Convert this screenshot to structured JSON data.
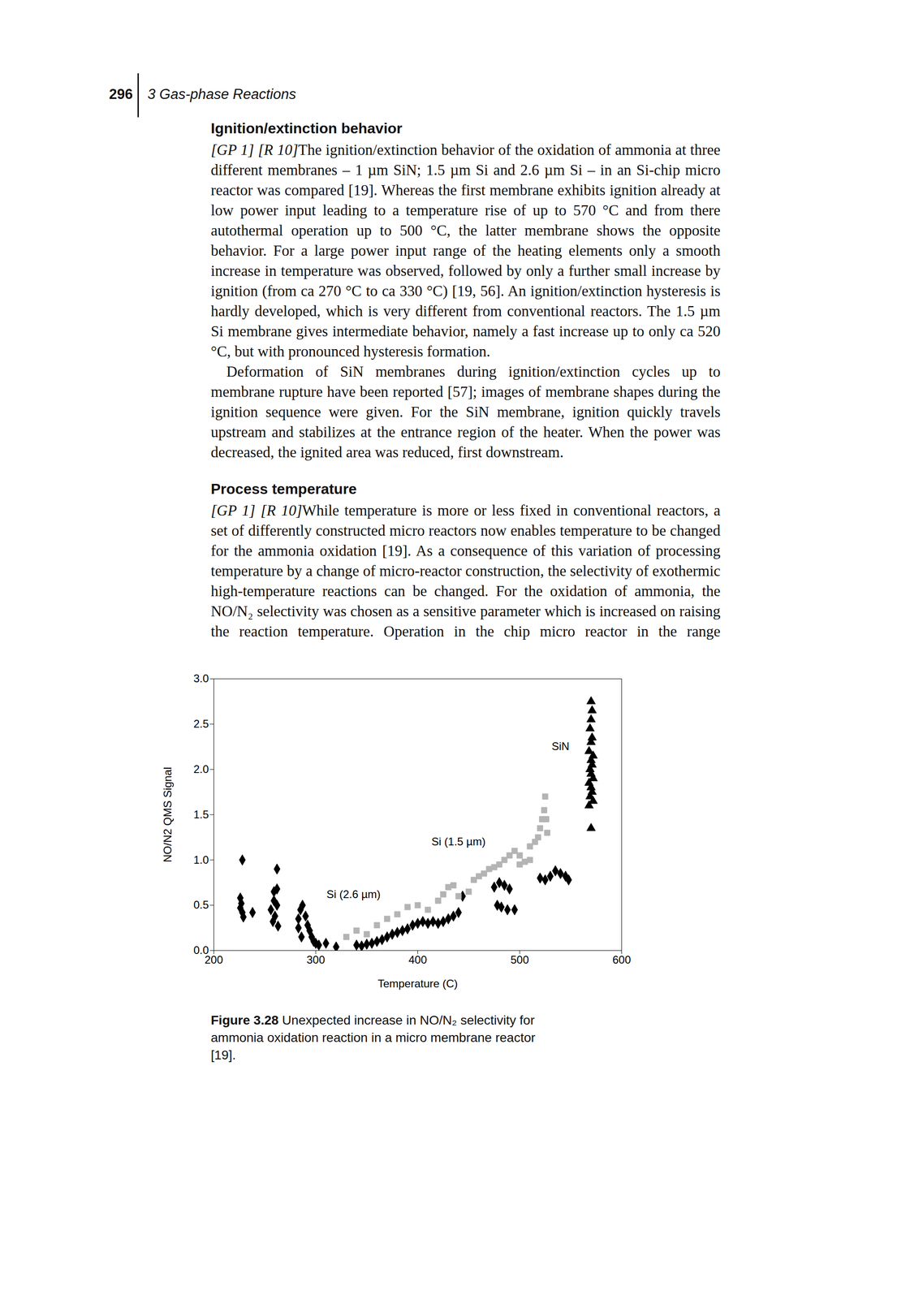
{
  "document": {
    "page_number": "296",
    "running_head": "3 Gas-phase Reactions",
    "sections": [
      {
        "heading": "Ignition/extinction behavior",
        "paragraphs": [
          {
            "tag": "[GP 1] [R 10]",
            "text": "The ignition/extinction behavior of the oxidation of ammonia at three different membranes – 1 µm SiN; 1.5 µm Si and 2.6 µm Si – in an Si-chip micro reactor was compared [19]. Whereas the first membrane exhibits ignition already at low power input leading to a temperature rise of up to 570 °C and from there autothermal operation up to 500 °C, the latter membrane shows the opposite behavior. For a large power input range of the heating elements only a smooth increase in temperature was observed, followed by only a further small increase by ignition (from ca 270 °C to ca 330 °C) [19, 56]. An ignition/extinction hysteresis is hardly developed, which is very different from conventional reactors. The 1.5 µm Si membrane gives intermediate behavior, namely a fast increase up to only ca 520 °C, but with pronounced hysteresis formation."
          },
          {
            "text": "Deformation of SiN membranes during ignition/extinction cycles up to membrane rupture have been reported [57]; images of membrane shapes during the ignition sequence were given. For the SiN membrane, ignition quickly travels upstream and stabilizes at the entrance region of the heater. When the power was decreased, the ignited area was reduced, first downstream."
          }
        ]
      },
      {
        "heading": "Process temperature",
        "paragraphs": [
          {
            "tag": "[GP 1] [R 10]",
            "text": "While temperature is more or less fixed in conventional reactors, a set of differently constructed micro reactors now enables temperature to be changed for the ammonia oxidation [19]. As a consequence of this variation of processing temperature by a change of micro-reactor construction, the selectivity of exothermic high-temperature reactions can be changed. For the oxidation of ammonia, the NO/N₂ selectivity was chosen as a sensitive parameter which is increased on raising the reaction temperature. Operation in the chip micro reactor in the range"
          }
        ]
      }
    ],
    "figure": {
      "number": "Figure 3.28",
      "caption": "Unexpected increase in NO/N₂ selectivity for ammonia oxidation reaction in a micro membrane reactor [19]."
    }
  },
  "chart_data": {
    "type": "scatter",
    "x_label": "Temperature (C)",
    "y_label": "NO/N2 QMS Signal",
    "xlim": [
      200,
      600
    ],
    "xticks": [
      200,
      300,
      400,
      500,
      600
    ],
    "ylim": [
      0,
      3
    ],
    "yticks": [
      0,
      0.5,
      1,
      1.5,
      2,
      2.5,
      3
    ],
    "grid": false,
    "series": [
      {
        "name": "Si (2.6 µm)",
        "marker": "diamond",
        "color": "#000000",
        "label_position": [
          337,
          0.62
        ],
        "x": [
          228,
          226,
          227,
          226,
          228,
          229,
          238,
          256,
          260,
          258,
          262,
          259,
          259,
          262,
          262,
          263,
          283,
          285,
          287,
          290,
          292,
          294,
          296,
          298,
          300,
          303,
          310,
          320,
          283,
          286,
          340,
          345,
          350,
          355,
          360,
          365,
          370,
          375,
          380,
          385,
          390,
          395,
          400,
          405,
          410,
          415,
          420,
          425,
          430,
          435,
          440,
          444,
          475,
          480,
          485,
          490,
          478,
          482,
          488,
          495,
          520,
          525,
          530,
          535,
          540,
          545,
          548
        ],
        "y": [
          1.0,
          0.58,
          0.52,
          0.47,
          0.42,
          0.37,
          0.42,
          0.45,
          0.38,
          0.32,
          0.5,
          0.55,
          0.65,
          0.68,
          0.9,
          0.27,
          0.35,
          0.45,
          0.5,
          0.38,
          0.28,
          0.22,
          0.15,
          0.1,
          0.08,
          0.06,
          0.08,
          0.04,
          0.25,
          0.15,
          0.06,
          0.05,
          0.07,
          0.08,
          0.1,
          0.12,
          0.15,
          0.18,
          0.2,
          0.22,
          0.24,
          0.28,
          0.3,
          0.32,
          0.3,
          0.32,
          0.3,
          0.32,
          0.35,
          0.38,
          0.42,
          0.6,
          0.7,
          0.75,
          0.72,
          0.68,
          0.5,
          0.48,
          0.45,
          0.45,
          0.8,
          0.78,
          0.82,
          0.88,
          0.85,
          0.82,
          0.78
        ]
      },
      {
        "name": "Si (1.5 µm)",
        "marker": "square",
        "color": "#b4b4b4",
        "label_position": [
          440,
          1.2
        ],
        "x": [
          330,
          340,
          350,
          360,
          370,
          380,
          390,
          400,
          410,
          420,
          425,
          430,
          435,
          440,
          450,
          455,
          460,
          465,
          470,
          475,
          480,
          485,
          490,
          495,
          500,
          505,
          510,
          515,
          518,
          520,
          522,
          524,
          525,
          526,
          527,
          510,
          500
        ],
        "y": [
          0.15,
          0.22,
          0.18,
          0.28,
          0.35,
          0.4,
          0.48,
          0.5,
          0.45,
          0.55,
          0.62,
          0.7,
          0.72,
          0.6,
          0.65,
          0.78,
          0.82,
          0.85,
          0.9,
          0.92,
          0.95,
          1.0,
          1.05,
          1.1,
          1.05,
          0.98,
          1.15,
          1.2,
          1.25,
          1.35,
          1.45,
          1.55,
          1.7,
          1.45,
          1.3,
          1.0,
          0.95
        ]
      },
      {
        "name": "SiN",
        "marker": "triangle",
        "color": "#000000",
        "label_position": [
          540,
          2.25
        ],
        "x": [
          570,
          568,
          572,
          569,
          571,
          570,
          568,
          572,
          570,
          569,
          571,
          570,
          572,
          568,
          570,
          571,
          569,
          570,
          571,
          570
        ],
        "y": [
          1.35,
          1.6,
          1.65,
          1.7,
          1.75,
          1.8,
          1.85,
          1.9,
          1.95,
          2.0,
          2.05,
          2.1,
          2.15,
          2.2,
          2.3,
          2.35,
          2.45,
          2.55,
          2.65,
          2.75
        ]
      }
    ]
  }
}
